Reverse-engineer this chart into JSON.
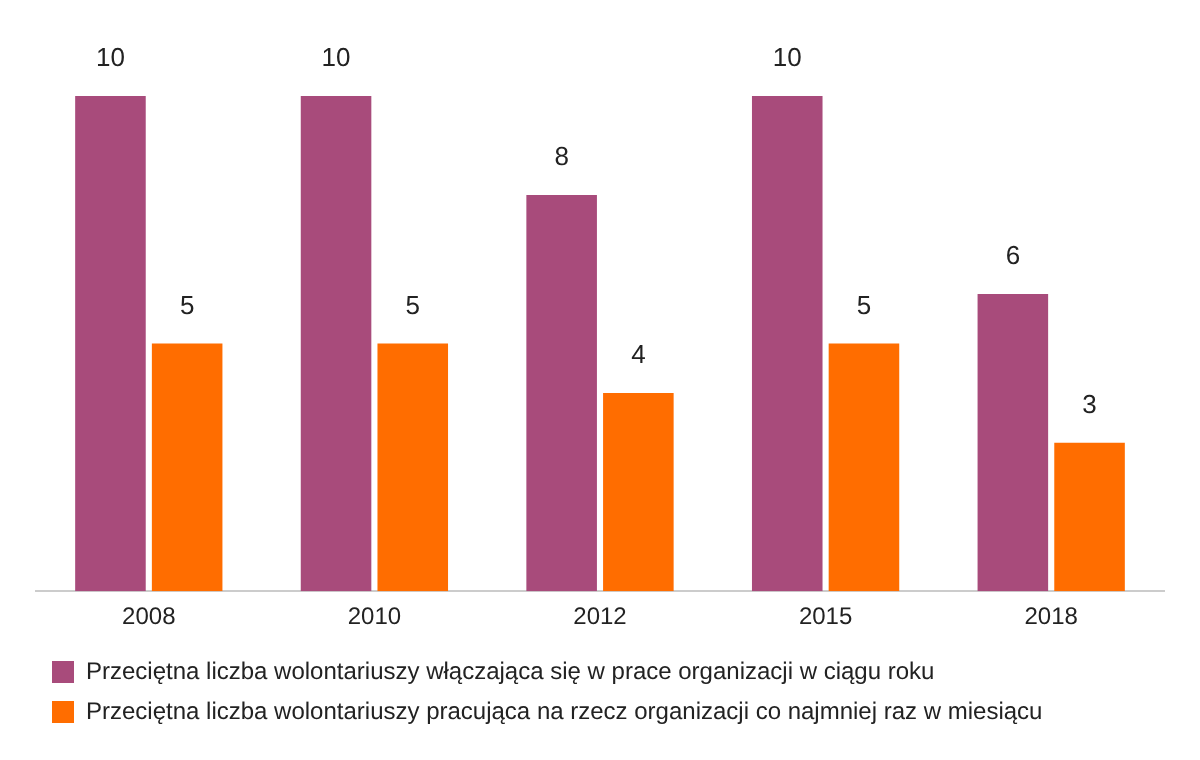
{
  "chart_data": {
    "type": "bar",
    "categories": [
      "2008",
      "2010",
      "2012",
      "2015",
      "2018"
    ],
    "series": [
      {
        "name": "Przeciętna liczba wolontariuszy włączająca się w prace organizacji w ciągu roku",
        "color": "#a84b7b",
        "values": [
          10,
          10,
          8,
          10,
          6
        ]
      },
      {
        "name": "Przeciętna liczba wolontariuszy pracująca na rzecz organizacji co najmniej raz w miesiącu",
        "color": "#ff6d00",
        "values": [
          5,
          5,
          4,
          5,
          3
        ]
      }
    ],
    "data_labels": true,
    "legend": "bottom",
    "grid": false
  }
}
